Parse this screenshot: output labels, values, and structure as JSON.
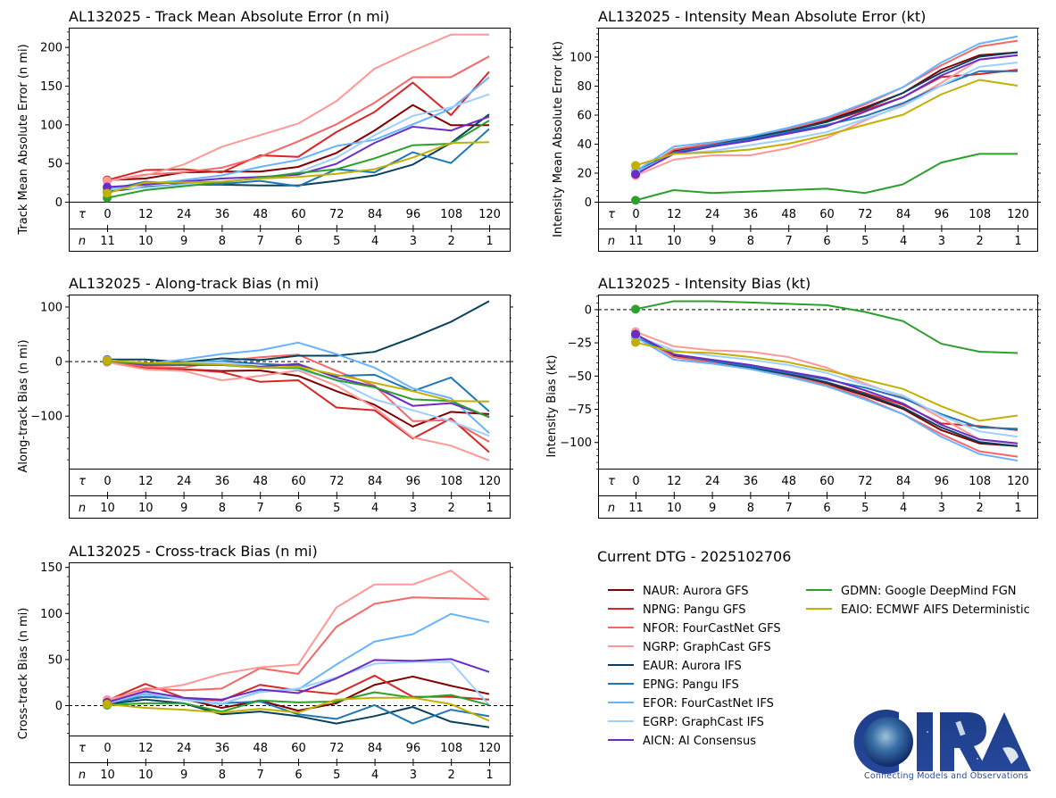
{
  "storm_id": "AL132025",
  "current_dtg_label": "Current DTG - 2025102706",
  "tau_symbol": "τ",
  "n_symbol": "n",
  "models": [
    {
      "code": "NAUR",
      "label": "NAUR: Aurora GFS",
      "color": "#800000"
    },
    {
      "code": "NPNG",
      "label": "NPNG: Pangu GFS",
      "color": "#d62728"
    },
    {
      "code": "NFOR",
      "label": "NFOR: FourCastNet GFS",
      "color": "#f56666"
    },
    {
      "code": "NGRP",
      "label": "NGRP: GraphCast GFS",
      "color": "#ff9896"
    },
    {
      "code": "EAUR",
      "label": "EAUR: Aurora IFS",
      "color": "#08415c"
    },
    {
      "code": "EPNG",
      "label": "EPNG: Pangu IFS",
      "color": "#1f77b4"
    },
    {
      "code": "EFOR",
      "label": "EFOR: FourCastNet IFS",
      "color": "#66b3ff"
    },
    {
      "code": "EGRP",
      "label": "EGRP: GraphCast IFS",
      "color": "#9ecfff"
    },
    {
      "code": "AICN",
      "label": "AICN: AI Consensus",
      "color": "#6a2cc8"
    },
    {
      "code": "GDMN",
      "label": "GDMN: Google DeepMind FGN",
      "color": "#2ca02c"
    },
    {
      "code": "EAIO",
      "label": "EAIO: ECMWF AIFS Deterministic",
      "color": "#c2b000"
    }
  ],
  "logo": {
    "text": "CIRA",
    "tagline": "Connecting Models and Observations"
  },
  "chart_data": [
    {
      "id": "track_mae",
      "type": "line",
      "title": "AL132025 - Track Mean Absolute Error (n mi)",
      "ylabel": "Track Mean Absolute Error (n mi)",
      "xlabel": "",
      "x": [
        0,
        12,
        24,
        36,
        48,
        60,
        72,
        84,
        96,
        108,
        120
      ],
      "n": [
        11,
        10,
        9,
        8,
        7,
        6,
        5,
        4,
        3,
        2,
        1
      ],
      "ylim": [
        0,
        225
      ],
      "yticks": [
        0,
        50,
        100,
        150,
        200
      ],
      "zero_line": false,
      "series": [
        {
          "name": "NAUR",
          "values": [
            28,
            30,
            38,
            39,
            39,
            45,
            63,
            92,
            125,
            99,
            99
          ]
        },
        {
          "name": "NPNG",
          "values": [
            28,
            41,
            42,
            38,
            60,
            58,
            90,
            116,
            154,
            112,
            168
          ]
        },
        {
          "name": "NFOR",
          "values": [
            27,
            35,
            38,
            44,
            58,
            78,
            100,
            128,
            161,
            161,
            188
          ]
        },
        {
          "name": "NGRP",
          "values": [
            27,
            34,
            48,
            71,
            86,
            101,
            130,
            172,
            195,
            216,
            216
          ]
        },
        {
          "name": "EAUR",
          "values": [
            13,
            19,
            22,
            22,
            21,
            21,
            27,
            34,
            48,
            76,
            113
          ]
        },
        {
          "name": "EPNG",
          "values": [
            15,
            26,
            23,
            23,
            27,
            20,
            42,
            38,
            64,
            50,
            94
          ]
        },
        {
          "name": "EFOR",
          "values": [
            17,
            23,
            28,
            34,
            45,
            54,
            72,
            80,
            100,
            120,
            161
          ]
        },
        {
          "name": "EGRP",
          "values": [
            16,
            18,
            22,
            26,
            30,
            38,
            57,
            86,
            111,
            122,
            139
          ]
        },
        {
          "name": "AICN",
          "values": [
            19,
            22,
            26,
            30,
            32,
            35,
            49,
            76,
            97,
            92,
            110
          ]
        },
        {
          "name": "GDMN",
          "values": [
            5,
            15,
            20,
            25,
            31,
            37,
            42,
            56,
            73,
            75,
            105
          ]
        },
        {
          "name": "EAIO",
          "values": [
            11,
            25,
            25,
            26,
            30,
            32,
            36,
            42,
            57,
            76,
            77
          ]
        }
      ]
    },
    {
      "id": "intensity_mae",
      "type": "line",
      "title": "AL132025 - Intensity Mean Absolute Error (kt)",
      "ylabel": "Intensity Mean Absolute Error (kt)",
      "xlabel": "",
      "x": [
        0,
        12,
        24,
        36,
        48,
        60,
        72,
        84,
        96,
        108,
        120
      ],
      "n": [
        11,
        10,
        9,
        8,
        7,
        6,
        5,
        4,
        3,
        2,
        1
      ],
      "ylim": [
        0,
        120
      ],
      "yticks": [
        0,
        20,
        40,
        60,
        80,
        100
      ],
      "zero_line": false,
      "series": [
        {
          "name": "NAUR",
          "values": [
            19,
            35,
            40,
            45,
            50,
            56,
            65,
            75,
            91,
            101,
            103
          ]
        },
        {
          "name": "NPNG",
          "values": [
            19,
            36,
            40,
            44,
            49,
            55,
            63,
            72,
            86,
            88,
            91
          ]
        },
        {
          "name": "NFOR",
          "values": [
            19,
            36,
            40,
            45,
            50,
            57,
            67,
            79,
            94,
            107,
            111
          ]
        },
        {
          "name": "NGRP",
          "values": [
            18,
            29,
            32,
            32,
            37,
            44,
            56,
            67,
            82,
            98,
            101
          ]
        },
        {
          "name": "EAUR",
          "values": [
            19,
            34,
            39,
            44,
            49,
            55,
            64,
            75,
            89,
            100,
            103
          ]
        },
        {
          "name": "EPNG",
          "values": [
            21,
            34,
            39,
            43,
            48,
            53,
            59,
            68,
            80,
            90,
            90
          ]
        },
        {
          "name": "EFOR",
          "values": [
            21,
            38,
            41,
            45,
            51,
            58,
            68,
            79,
            96,
            109,
            114
          ]
        },
        {
          "name": "EGRP",
          "values": [
            20,
            33,
            35,
            39,
            43,
            48,
            57,
            66,
            80,
            93,
            96
          ]
        },
        {
          "name": "AICN",
          "values": [
            19,
            33,
            38,
            42,
            47,
            52,
            62,
            72,
            87,
            98,
            101
          ]
        },
        {
          "name": "GDMN",
          "values": [
            1,
            8,
            6,
            7,
            8,
            9,
            6,
            12,
            27,
            33,
            33
          ]
        },
        {
          "name": "EAIO",
          "values": [
            25,
            33,
            34,
            36,
            40,
            46,
            53,
            60,
            74,
            84,
            80
          ]
        }
      ]
    },
    {
      "id": "along_track_bias",
      "type": "line",
      "title": "AL132025 - Along-track Bias (n mi)",
      "ylabel": "Along-track Bias (n mi)",
      "xlabel": "",
      "x": [
        0,
        12,
        24,
        36,
        48,
        60,
        72,
        84,
        96,
        108,
        120
      ],
      "n": [
        10,
        10,
        9,
        8,
        7,
        6,
        5,
        4,
        3,
        2,
        1
      ],
      "ylim": [
        -197,
        122
      ],
      "yticks": [
        -100,
        0,
        100
      ],
      "zero_line": true,
      "series": [
        {
          "name": "NAUR",
          "values": [
            0,
            -10,
            -15,
            -18,
            -17,
            -27,
            -55,
            -80,
            -120,
            -93,
            -97
          ]
        },
        {
          "name": "NPNG",
          "values": [
            0,
            -12,
            -15,
            -20,
            -38,
            -35,
            -85,
            -90,
            -142,
            -105,
            -167
          ]
        },
        {
          "name": "NFOR",
          "values": [
            0,
            -10,
            -12,
            0,
            7,
            12,
            -18,
            -45,
            -110,
            -108,
            -148
          ]
        },
        {
          "name": "NGRP",
          "values": [
            -2,
            -15,
            -18,
            -35,
            -27,
            -17,
            -45,
            -85,
            -140,
            -155,
            -182
          ]
        },
        {
          "name": "EAUR",
          "values": [
            3,
            3,
            -2,
            5,
            2,
            10,
            10,
            17,
            43,
            72,
            110
          ]
        },
        {
          "name": "EPNG",
          "values": [
            2,
            -5,
            -3,
            0,
            -5,
            -8,
            -27,
            -25,
            -55,
            -30,
            -92
          ]
        },
        {
          "name": "EFOR",
          "values": [
            2,
            -5,
            3,
            13,
            20,
            34,
            13,
            -12,
            -50,
            -68,
            -132
          ]
        },
        {
          "name": "EGRP",
          "values": [
            2,
            -5,
            -3,
            -2,
            -10,
            -15,
            -35,
            -70,
            -90,
            -110,
            -137
          ]
        },
        {
          "name": "AICN",
          "values": [
            1,
            -7,
            -7,
            -7,
            -10,
            -5,
            -30,
            -47,
            -82,
            -77,
            -102
          ]
        },
        {
          "name": "GDMN",
          "values": [
            0,
            -5,
            -5,
            -7,
            -12,
            -12,
            -35,
            -48,
            -70,
            -73,
            -103
          ]
        },
        {
          "name": "EAIO",
          "values": [
            1,
            -3,
            -4,
            -6,
            -12,
            -10,
            -25,
            -40,
            -55,
            -73,
            -74
          ]
        }
      ]
    },
    {
      "id": "intensity_bias",
      "type": "line",
      "title": "AL132025 - Intensity Bias (kt)",
      "ylabel": "Intensity Bias (kt)",
      "xlabel": "",
      "x": [
        0,
        12,
        24,
        36,
        48,
        60,
        72,
        84,
        96,
        108,
        120
      ],
      "n": [
        11,
        10,
        9,
        8,
        7,
        6,
        5,
        4,
        3,
        2,
        1
      ],
      "ylim": [
        -120,
        11
      ],
      "yticks": [
        -100,
        -75,
        -50,
        -25,
        0
      ],
      "zero_line": true,
      "series": [
        {
          "name": "NAUR",
          "values": [
            -19,
            -35,
            -40,
            -45,
            -50,
            -56,
            -65,
            -75,
            -91,
            -101,
            -103
          ]
        },
        {
          "name": "NPNG",
          "values": [
            -19,
            -36,
            -40,
            -44,
            -49,
            -55,
            -63,
            -72,
            -86,
            -88,
            -91
          ]
        },
        {
          "name": "NFOR",
          "values": [
            -19,
            -36,
            -40,
            -45,
            -50,
            -57,
            -67,
            -79,
            -94,
            -107,
            -111
          ]
        },
        {
          "name": "NGRP",
          "values": [
            -17,
            -28,
            -31,
            -32,
            -36,
            -44,
            -56,
            -66,
            -82,
            -98,
            -101
          ]
        },
        {
          "name": "EAUR",
          "values": [
            -19,
            -34,
            -39,
            -44,
            -49,
            -55,
            -64,
            -74,
            -89,
            -100,
            -103
          ]
        },
        {
          "name": "EPNG",
          "values": [
            -21,
            -34,
            -39,
            -43,
            -48,
            -53,
            -59,
            -67,
            -79,
            -89,
            -90
          ]
        },
        {
          "name": "EFOR",
          "values": [
            -21,
            -38,
            -41,
            -45,
            -51,
            -58,
            -68,
            -79,
            -96,
            -109,
            -114
          ]
        },
        {
          "name": "EGRP",
          "values": [
            -20,
            -31,
            -35,
            -38,
            -42,
            -48,
            -57,
            -65,
            -80,
            -92,
            -96
          ]
        },
        {
          "name": "AICN",
          "values": [
            -19,
            -34,
            -38,
            -42,
            -47,
            -52,
            -61,
            -71,
            -87,
            -98,
            -101
          ]
        },
        {
          "name": "GDMN",
          "values": [
            0,
            6,
            6,
            5,
            4,
            3,
            -2,
            -9,
            -26,
            -32,
            -33
          ]
        },
        {
          "name": "EAIO",
          "values": [
            -25,
            -32,
            -33,
            -36,
            -40,
            -46,
            -53,
            -60,
            -73,
            -84,
            -80
          ]
        }
      ]
    },
    {
      "id": "cross_track_bias",
      "type": "line",
      "title": "AL132025 - Cross-track Bias (n mi)",
      "ylabel": "Cross-track Bias (n mi)",
      "xlabel": "",
      "x": [
        0,
        12,
        24,
        36,
        48,
        60,
        72,
        84,
        96,
        108,
        120
      ],
      "n": [
        10,
        10,
        9,
        8,
        7,
        6,
        5,
        4,
        3,
        2,
        1
      ],
      "ylim": [
        -33,
        155
      ],
      "yticks": [
        0,
        50,
        100,
        150
      ],
      "zero_line": true,
      "series": [
        {
          "name": "NAUR",
          "values": [
            4,
            9,
            7,
            -3,
            5,
            -6,
            2,
            22,
            31,
            21,
            12
          ]
        },
        {
          "name": "NPNG",
          "values": [
            5,
            23,
            8,
            5,
            22,
            16,
            12,
            32,
            9,
            9,
            6
          ]
        },
        {
          "name": "NFOR",
          "values": [
            5,
            18,
            16,
            18,
            40,
            34,
            85,
            110,
            117,
            116,
            115
          ]
        },
        {
          "name": "NGRP",
          "values": [
            6,
            16,
            22,
            34,
            41,
            44,
            106,
            131,
            131,
            146,
            114
          ]
        },
        {
          "name": "EAUR",
          "values": [
            1,
            6,
            2,
            -10,
            -7,
            -12,
            -20,
            -12,
            -2,
            -18,
            -24
          ]
        },
        {
          "name": "EPNG",
          "values": [
            2,
            9,
            7,
            2,
            4,
            -10,
            -15,
            0,
            -20,
            -5,
            -12
          ]
        },
        {
          "name": "EFOR",
          "values": [
            2,
            12,
            6,
            1,
            15,
            17,
            44,
            69,
            77,
            99,
            90
          ]
        },
        {
          "name": "EGRP",
          "values": [
            2,
            14,
            6,
            2,
            14,
            18,
            30,
            45,
            47,
            47,
            0
          ]
        },
        {
          "name": "AICN",
          "values": [
            3,
            15,
            8,
            6,
            17,
            13,
            29,
            49,
            48,
            50,
            36
          ]
        },
        {
          "name": "GDMN",
          "values": [
            0,
            2,
            2,
            -7,
            5,
            3,
            4,
            14,
            8,
            11,
            0
          ]
        },
        {
          "name": "EAIO",
          "values": [
            1,
            -3,
            -5,
            -8,
            -4,
            -8,
            6,
            8,
            8,
            1,
            -17
          ]
        }
      ]
    }
  ]
}
